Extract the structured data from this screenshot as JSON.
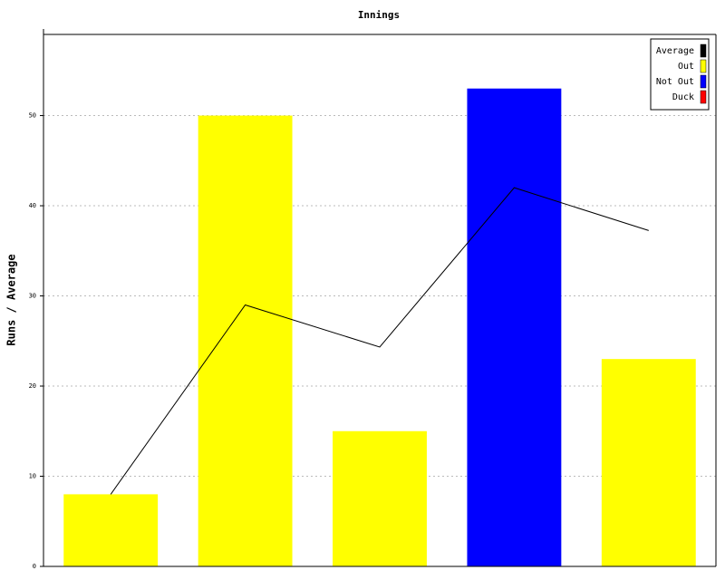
{
  "chart_data": {
    "type": "bar",
    "title": "Innings",
    "y_label": "Runs / Average",
    "categories": [
      null,
      null,
      null,
      null,
      null
    ],
    "series": [
      {
        "name": "Average",
        "color": "#000000",
        "type": "line",
        "values": [
          8,
          29,
          24.33,
          42,
          37.25
        ]
      },
      {
        "name": "Out",
        "color": "#ffff00",
        "values": [
          8,
          50,
          15,
          null,
          23
        ]
      },
      {
        "name": "Not Out",
        "color": "#0000ff",
        "values": [
          null,
          null,
          null,
          53,
          null
        ]
      },
      {
        "name": "Duck",
        "color": "#ff0000",
        "values": [
          null,
          null,
          null,
          null,
          null
        ]
      }
    ],
    "ylim": [
      0,
      59
    ],
    "yticks": [
      0,
      10,
      20,
      30,
      40,
      50
    ],
    "grid": true,
    "legend": "top-right"
  }
}
